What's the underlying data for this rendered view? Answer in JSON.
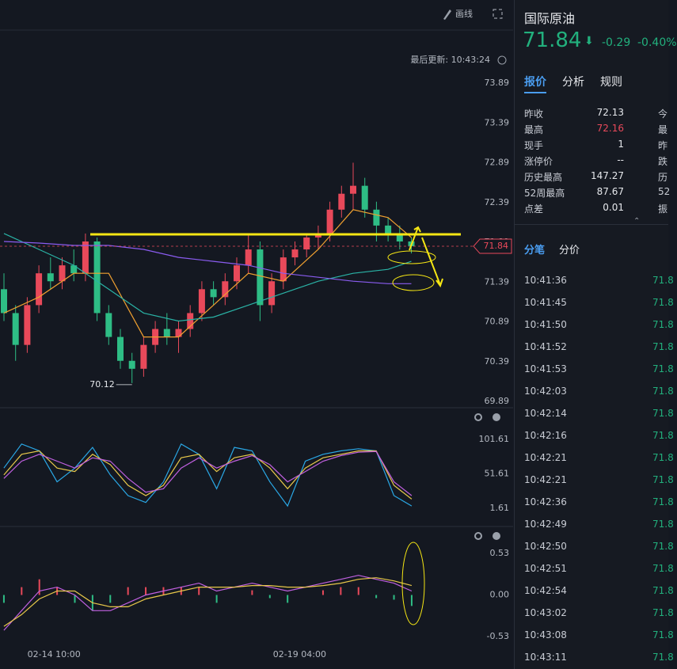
{
  "header": {
    "draw_button": "画线",
    "last_update": "最后更新: 10:43:24"
  },
  "chart_data": [
    {
      "type": "candlestick",
      "ylim": [
        69.89,
        73.89
      ],
      "yticks": [
        73.89,
        73.39,
        72.89,
        72.39,
        71.89,
        71.39,
        70.89,
        70.39,
        69.89
      ],
      "xlim": [
        -0.34,
        43.74
      ],
      "xticks": [
        {
          "value": 4.3,
          "label": "02-14 10:00"
        },
        {
          "value": 25.4,
          "label": "02-19 04:00"
        }
      ],
      "up_color": "#e8495a",
      "down_color": "#2ebd85",
      "open": [
        71.3,
        71.0,
        70.6,
        71.1,
        71.5,
        71.4,
        71.6,
        71.5,
        71.9,
        71.0,
        70.7,
        70.4,
        70.3,
        70.6,
        70.8,
        70.7,
        70.8,
        71.0,
        71.3,
        71.2,
        71.4,
        71.6,
        71.8,
        71.1,
        71.4,
        71.7,
        71.8,
        71.95,
        72.0,
        72.3,
        72.5,
        72.6,
        72.3,
        72.1,
        72.0,
        71.9
      ],
      "high": [
        71.5,
        71.1,
        71.2,
        71.6,
        71.7,
        71.7,
        71.8,
        72.0,
        71.95,
        71.1,
        70.8,
        70.5,
        70.7,
        70.9,
        71.0,
        70.9,
        71.1,
        71.4,
        71.4,
        71.5,
        71.7,
        72.0,
        71.9,
        71.5,
        71.8,
        71.9,
        72.0,
        72.1,
        72.4,
        72.6,
        72.89,
        72.7,
        72.4,
        72.2,
        72.1,
        71.95
      ],
      "low": [
        70.9,
        70.4,
        70.5,
        71.0,
        71.3,
        71.3,
        71.4,
        71.4,
        70.9,
        70.6,
        70.3,
        70.12,
        70.2,
        70.5,
        70.6,
        70.5,
        70.7,
        70.9,
        71.1,
        71.1,
        71.3,
        71.5,
        70.9,
        71.0,
        71.3,
        71.6,
        71.7,
        71.8,
        71.9,
        72.2,
        72.3,
        72.2,
        71.9,
        71.9,
        71.8,
        71.75
      ],
      "close": [
        71.0,
        70.6,
        71.1,
        71.5,
        71.4,
        71.6,
        71.5,
        71.9,
        71.0,
        70.7,
        70.4,
        70.3,
        70.6,
        70.8,
        70.7,
        70.8,
        71.0,
        71.3,
        71.2,
        71.4,
        71.6,
        71.8,
        71.1,
        71.4,
        71.7,
        71.8,
        71.95,
        72.0,
        72.3,
        72.5,
        72.6,
        72.3,
        72.1,
        72.0,
        71.9,
        71.84
      ],
      "series": [
        {
          "color": "#f0a030",
          "x": [
            0,
            3,
            6,
            9,
            12,
            15,
            18,
            21,
            24,
            27,
            30,
            33,
            35
          ],
          "values": [
            71.0,
            71.2,
            71.5,
            71.5,
            70.7,
            70.7,
            71.1,
            71.5,
            71.4,
            71.8,
            72.3,
            72.2,
            71.95
          ]
        },
        {
          "color": "#2ab3a6",
          "x": [
            0,
            3,
            6,
            9,
            12,
            15,
            18,
            21,
            24,
            27,
            30,
            33,
            35
          ],
          "values": [
            72.0,
            71.8,
            71.6,
            71.3,
            71.0,
            70.9,
            70.95,
            71.1,
            71.25,
            71.4,
            71.5,
            71.55,
            71.65
          ]
        },
        {
          "color": "#8a5cf0",
          "x": [
            0,
            3,
            6,
            9,
            12,
            15,
            18,
            21,
            24,
            27,
            30,
            33,
            35
          ],
          "values": [
            71.9,
            71.88,
            71.85,
            71.85,
            71.8,
            71.7,
            71.65,
            71.6,
            71.5,
            71.45,
            71.4,
            71.37,
            71.37
          ]
        }
      ],
      "low_label": {
        "index": 11,
        "value": 70.12,
        "label": "70.12"
      },
      "last_price": {
        "value": 71.84,
        "label": "71.84"
      }
    },
    {
      "type": "line",
      "ylim": [
        1.61,
        101.61
      ],
      "yticks": [
        101.61,
        51.61,
        1.61
      ],
      "xlim": [
        -0.22,
        28.72
      ],
      "series": [
        {
          "color": "#2aa8e6",
          "values": [
            60,
            95,
            85,
            40,
            60,
            90,
            50,
            20,
            10,
            40,
            95,
            80,
            30,
            90,
            85,
            40,
            5,
            70,
            80,
            85,
            88,
            85,
            20,
            5
          ]
        },
        {
          "color": "#e8c84a",
          "values": [
            50,
            80,
            85,
            60,
            55,
            80,
            65,
            35,
            20,
            35,
            75,
            80,
            55,
            75,
            80,
            60,
            30,
            60,
            75,
            80,
            85,
            85,
            35,
            15
          ]
        },
        {
          "color": "#c060e0",
          "values": [
            45,
            70,
            80,
            70,
            60,
            75,
            70,
            45,
            25,
            30,
            60,
            75,
            60,
            70,
            78,
            65,
            40,
            55,
            70,
            78,
            83,
            84,
            40,
            20
          ]
        }
      ]
    },
    {
      "type": "macd",
      "ylim": [
        -0.53,
        0.53
      ],
      "yticks": [
        0.53,
        {
          "value": 0,
          "label": "0.00"
        },
        -0.53
      ],
      "xlim": [
        -0.22,
        28.72
      ],
      "series": [
        {
          "kind": "bar",
          "up_color": "#e8495a",
          "down_color": "#2ebd85",
          "values": [
            -0.1,
            0.1,
            0.2,
            0.1,
            -0.1,
            -0.2,
            -0.1,
            0.1,
            0.1,
            0.1,
            0.1,
            0.1,
            -0.1,
            0,
            0.06,
            -0.04,
            -0.1,
            0,
            0.06,
            0.1,
            0.1,
            -0.04,
            -0.06,
            -0.14
          ]
        },
        {
          "kind": "line",
          "color": "#c060e0",
          "values": [
            -0.45,
            -0.2,
            0.05,
            0.1,
            0.0,
            -0.2,
            -0.2,
            -0.1,
            0.0,
            0.05,
            0.1,
            0.15,
            0.05,
            0.1,
            0.15,
            0.1,
            0.05,
            0.1,
            0.15,
            0.2,
            0.25,
            0.2,
            0.15,
            0.05
          ]
        },
        {
          "kind": "line",
          "color": "#e8c84a",
          "values": [
            -0.4,
            -0.25,
            -0.05,
            0.05,
            0.05,
            -0.1,
            -0.15,
            -0.15,
            -0.05,
            0.0,
            0.05,
            0.1,
            0.1,
            0.1,
            0.12,
            0.12,
            0.1,
            0.1,
            0.12,
            0.15,
            0.2,
            0.22,
            0.18,
            0.12
          ]
        }
      ]
    }
  ],
  "quote": {
    "name": "国际原油",
    "price": "71.84",
    "change": "-0.29",
    "change_pct": "-0.40%",
    "tabs": [
      "报价",
      "分析",
      "规则"
    ],
    "stats": [
      [
        "昨收",
        "72.13",
        "今"
      ],
      [
        "最高",
        "72.16",
        "最"
      ],
      [
        "现手",
        "1",
        "昨"
      ],
      [
        "涨停价",
        "--",
        "跌"
      ],
      [
        "历史最高",
        "147.27",
        "历"
      ],
      [
        "52周最高",
        "87.67",
        "52"
      ],
      [
        "点差",
        "0.01",
        "振"
      ]
    ],
    "trade_tabs": [
      "分笔",
      "分价"
    ],
    "trades": [
      [
        "10:41:36",
        "71.8"
      ],
      [
        "10:41:45",
        "71.8"
      ],
      [
        "10:41:50",
        "71.8"
      ],
      [
        "10:41:52",
        "71.8"
      ],
      [
        "10:41:53",
        "71.8"
      ],
      [
        "10:42:03",
        "71.8"
      ],
      [
        "10:42:14",
        "71.8"
      ],
      [
        "10:42:16",
        "71.8"
      ],
      [
        "10:42:21",
        "71.8"
      ],
      [
        "10:42:21",
        "71.8"
      ],
      [
        "10:42:36",
        "71.8"
      ],
      [
        "10:42:49",
        "71.8"
      ],
      [
        "10:42:50",
        "71.8"
      ],
      [
        "10:42:51",
        "71.8"
      ],
      [
        "10:42:54",
        "71.8"
      ],
      [
        "10:43:02",
        "71.8"
      ],
      [
        "10:43:08",
        "71.8"
      ],
      [
        "10:43:11",
        "71.8"
      ]
    ]
  }
}
